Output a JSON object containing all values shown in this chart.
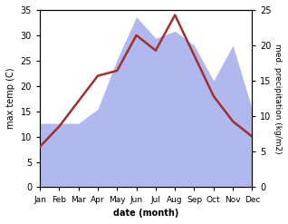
{
  "months": [
    "Jan",
    "Feb",
    "Mar",
    "Apr",
    "May",
    "Jun",
    "Jul",
    "Aug",
    "Sep",
    "Oct",
    "Nov",
    "Dec"
  ],
  "temperature": [
    8,
    12,
    17,
    22,
    23,
    30,
    27,
    34,
    26,
    18,
    13,
    10
  ],
  "precipitation": [
    9,
    9,
    9,
    11,
    18,
    24,
    21,
    22,
    20,
    15,
    20,
    11
  ],
  "temp_color": "#a03030",
  "precip_color": "#b0b8ee",
  "background_color": "#ffffff",
  "ylabel_left": "max temp (C)",
  "ylabel_right": "med. precipitation (kg/m2)",
  "xlabel": "date (month)",
  "ylim_left": [
    0,
    35
  ],
  "ylim_right": [
    0,
    25
  ],
  "yticks_left": [
    0,
    5,
    10,
    15,
    20,
    25,
    30,
    35
  ],
  "yticks_right": [
    0,
    5,
    10,
    15,
    20,
    25
  ]
}
